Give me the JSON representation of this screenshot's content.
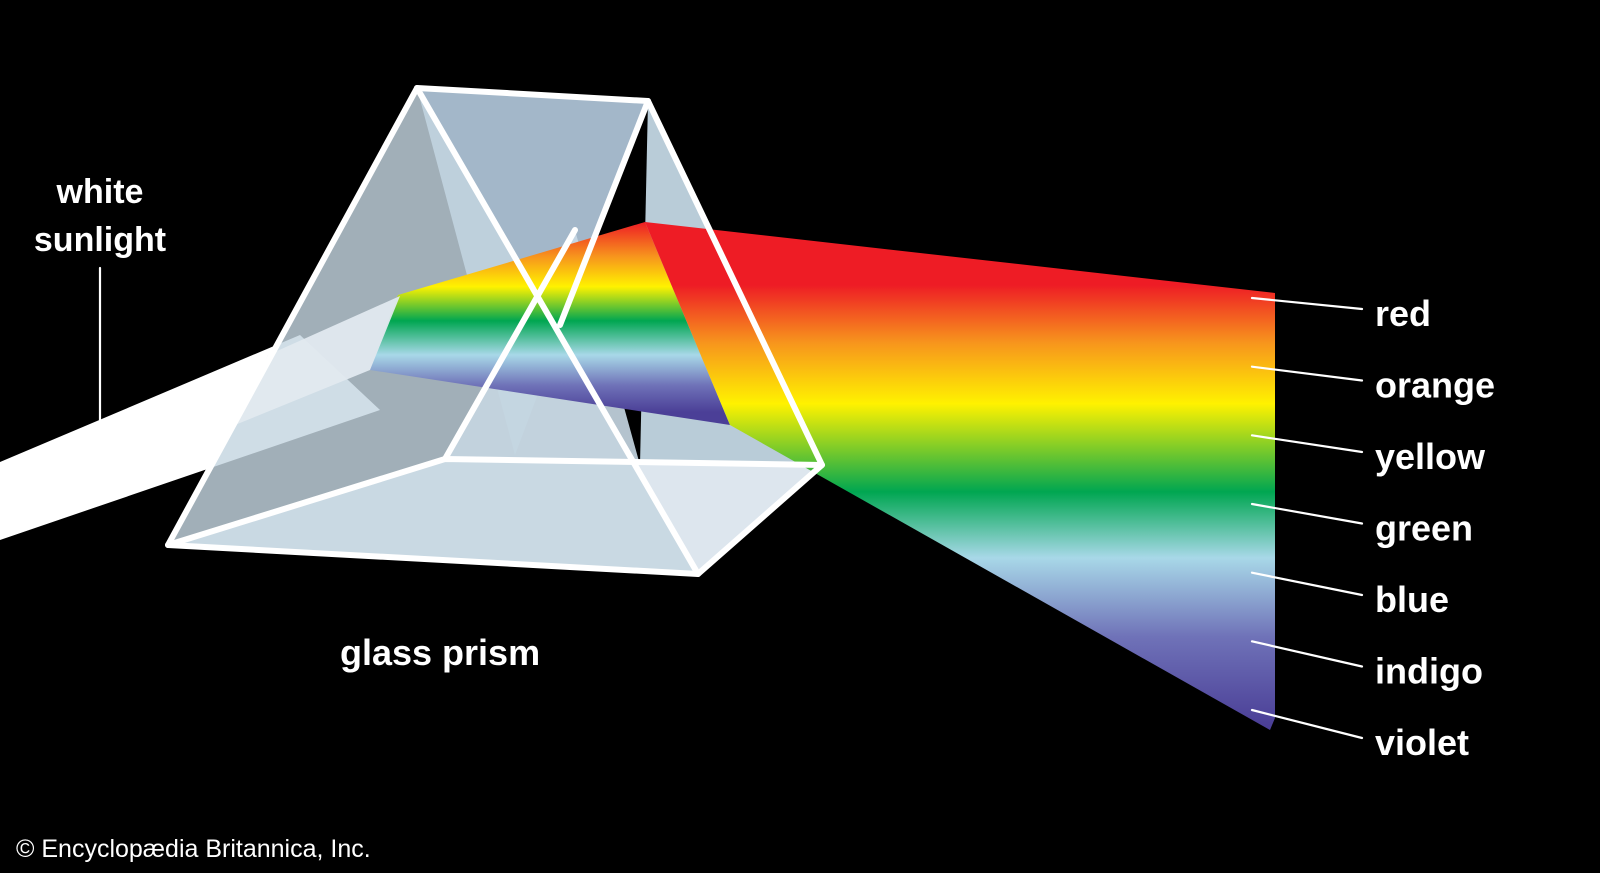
{
  "labels": {
    "input_line1": "white",
    "input_line2": "sunlight",
    "prism": "glass prism",
    "copyright": "© Encyclopædia Britannica, Inc."
  },
  "spectrum": [
    {
      "name": "red",
      "color": "#ee1c25"
    },
    {
      "name": "orange",
      "color": "#f7941d"
    },
    {
      "name": "yellow",
      "color": "#fff200"
    },
    {
      "name": "green",
      "color": "#00a651"
    },
    {
      "name": "blue",
      "color": "#a8d8e8"
    },
    {
      "name": "indigo",
      "color": "#6f72b8"
    },
    {
      "name": "violet",
      "color": "#4b3f97"
    }
  ],
  "colors": {
    "background": "#000000",
    "beam": "#ffffff",
    "prism_face_light": "#dde6ee",
    "prism_face_mid": "#b9ccd8",
    "prism_face_back": "#a3b7c9",
    "prism_edge": "#ffffff"
  }
}
